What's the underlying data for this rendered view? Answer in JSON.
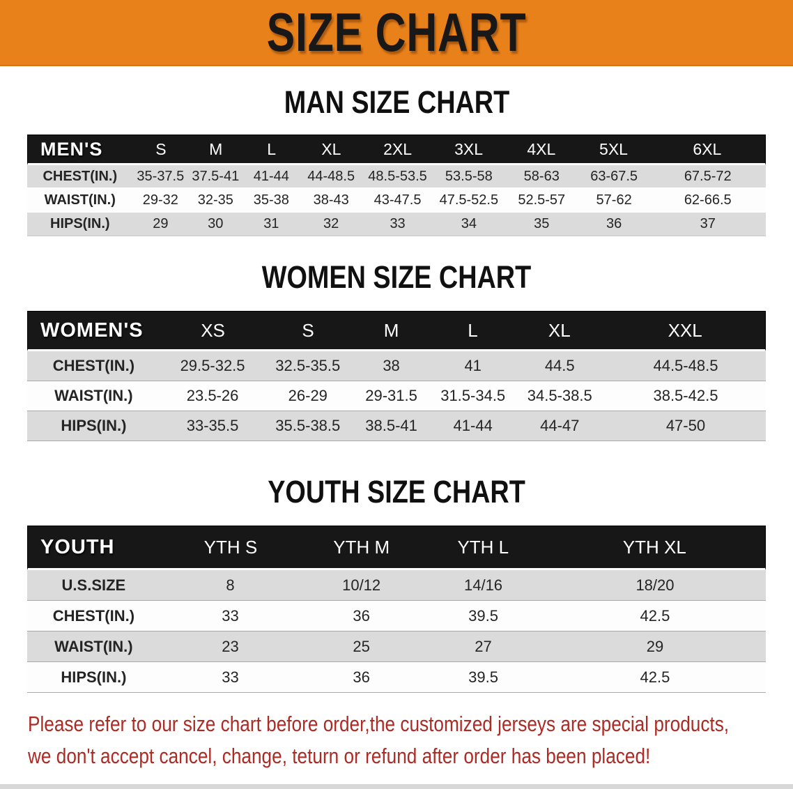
{
  "banner": {
    "title": "SIZE CHART",
    "bg_color": "#E8811A",
    "text_color": "#181818"
  },
  "sections": [
    {
      "id": "mens",
      "heading": "MAN SIZE CHART",
      "table": {
        "header_label": "MEN'S",
        "columns": [
          "S",
          "M",
          "L",
          "XL",
          "2XL",
          "3XL",
          "4XL",
          "5XL",
          "6XL"
        ],
        "rows": [
          {
            "label": "CHEST(IN.)",
            "values": [
              "35-37.5",
              "37.5-41",
              "41-44",
              "44-48.5",
              "48.5-53.5",
              "53.5-58",
              "58-63",
              "63-67.5",
              "67.5-72"
            ]
          },
          {
            "label": "WAIST(IN.)",
            "values": [
              "29-32",
              "32-35",
              "35-38",
              "38-43",
              "43-47.5",
              "47.5-52.5",
              "52.5-57",
              "57-62",
              "62-66.5"
            ]
          },
          {
            "label": "HIPS(IN.)",
            "values": [
              "29",
              "30",
              "31",
              "32",
              "33",
              "34",
              "35",
              "36",
              "37"
            ]
          }
        ]
      }
    },
    {
      "id": "womens",
      "heading": "WOMEN SIZE CHART",
      "table": {
        "header_label": "WOMEN'S",
        "columns": [
          "XS",
          "S",
          "M",
          "L",
          "XL",
          "XXL"
        ],
        "rows": [
          {
            "label": "CHEST(IN.)",
            "values": [
              "29.5-32.5",
              "32.5-35.5",
              "38",
              "41",
              "44.5",
              "44.5-48.5"
            ]
          },
          {
            "label": "WAIST(IN.)",
            "values": [
              "23.5-26",
              "26-29",
              "29-31.5",
              "31.5-34.5",
              "34.5-38.5",
              "38.5-42.5"
            ]
          },
          {
            "label": "HIPS(IN.)",
            "values": [
              "33-35.5",
              "35.5-38.5",
              "38.5-41",
              "41-44",
              "44-47",
              "47-50"
            ]
          }
        ]
      }
    },
    {
      "id": "youth",
      "heading": "YOUTH SIZE CHART",
      "table": {
        "header_label": "YOUTH",
        "columns": [
          "YTH S",
          "YTH M",
          "YTH L",
          "YTH XL"
        ],
        "rows": [
          {
            "label": "U.S.SIZE",
            "values": [
              "8",
              "10/12",
              "14/16",
              "18/20"
            ]
          },
          {
            "label": "CHEST(IN.)",
            "values": [
              "33",
              "36",
              "39.5",
              "42.5"
            ]
          },
          {
            "label": "WAIST(IN.)",
            "values": [
              "23",
              "25",
              "27",
              "29"
            ]
          },
          {
            "label": "HIPS(IN.)",
            "values": [
              "33",
              "36",
              "39.5",
              "42.5"
            ]
          }
        ]
      }
    }
  ],
  "disclaimer": {
    "lines": [
      "Please refer to our size chart before order,the customized jerseys are special products,",
      "we don't accept cancel, change, teturn or refund after order has been placed!"
    ],
    "color": "#AC2B24"
  },
  "colors": {
    "banner_orange": "#E8811A",
    "table_header_black": "#171717",
    "row_gray": "#DBDBDB",
    "row_white": "#FDFDFD",
    "disclaimer_red": "#AC2B24"
  }
}
